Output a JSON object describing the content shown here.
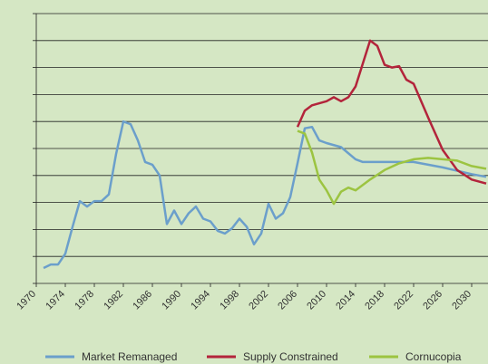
{
  "chart_data": {
    "type": "line",
    "grid": true,
    "legend": "bottom",
    "xlim": [
      1970,
      2032.25
    ],
    "xticks": [
      1970,
      1974,
      1978,
      1982,
      1986,
      1990,
      1994,
      1998,
      2002,
      2006,
      2010,
      2014,
      2018,
      2022,
      2026,
      2030
    ],
    "ylim": [
      0,
      10
    ],
    "yticks": [
      0,
      1,
      2,
      3,
      4,
      5,
      6,
      7,
      8,
      9,
      10
    ],
    "series": [
      {
        "name": "Market Remanaged",
        "color": "#6b9fcb",
        "x": [
          1971,
          1972,
          1973,
          1974,
          1975,
          1976,
          1977,
          1978,
          1979,
          1980,
          1981,
          1982,
          1983,
          1984,
          1985,
          1986,
          1987,
          1988,
          1989,
          1990,
          1991,
          1992,
          1993,
          1994,
          1995,
          1996,
          1997,
          1998,
          1999,
          2000,
          2001,
          2002,
          2003,
          2004,
          2005,
          2006,
          2007,
          2008,
          2009,
          2010,
          2012,
          2014,
          2015,
          2018,
          2022,
          2026,
          2030,
          2032
        ],
        "values": [
          0.57,
          0.7,
          0.7,
          1.1,
          2.1,
          3.05,
          2.85,
          3.05,
          3.05,
          3.3,
          4.8,
          6.0,
          5.9,
          5.3,
          4.5,
          4.4,
          4.0,
          2.2,
          2.7,
          2.2,
          2.6,
          2.85,
          2.4,
          2.3,
          1.95,
          1.85,
          2.05,
          2.4,
          2.1,
          1.45,
          1.85,
          2.95,
          2.4,
          2.6,
          3.2,
          4.45,
          5.75,
          5.8,
          5.3,
          5.2,
          5.05,
          4.6,
          4.5,
          4.5,
          4.5,
          4.3,
          4.05,
          3.95
        ]
      },
      {
        "name": "Supply Constrained",
        "color": "#b3243b",
        "x": [
          2006,
          2007,
          2008,
          2010,
          2011,
          2012,
          2013,
          2014,
          2015,
          2016,
          2017,
          2018,
          2019,
          2020,
          2021,
          2022,
          2024,
          2026,
          2028,
          2030,
          2032
        ],
        "values": [
          5.8,
          6.4,
          6.6,
          6.75,
          6.9,
          6.75,
          6.9,
          7.3,
          8.15,
          9.0,
          8.8,
          8.1,
          8.0,
          8.05,
          7.55,
          7.4,
          6.15,
          4.95,
          4.2,
          3.85,
          3.7
        ]
      },
      {
        "name": "Cornucopia",
        "color": "#9cc441",
        "x": [
          2006,
          2007,
          2008,
          2009,
          2010,
          2011,
          2012,
          2013,
          2014,
          2016,
          2018,
          2020,
          2022,
          2024,
          2026,
          2028,
          2030,
          2032
        ],
        "values": [
          5.65,
          5.55,
          4.85,
          3.85,
          3.45,
          2.95,
          3.4,
          3.55,
          3.45,
          3.85,
          4.2,
          4.45,
          4.6,
          4.65,
          4.6,
          4.55,
          4.35,
          4.25
        ]
      }
    ]
  }
}
